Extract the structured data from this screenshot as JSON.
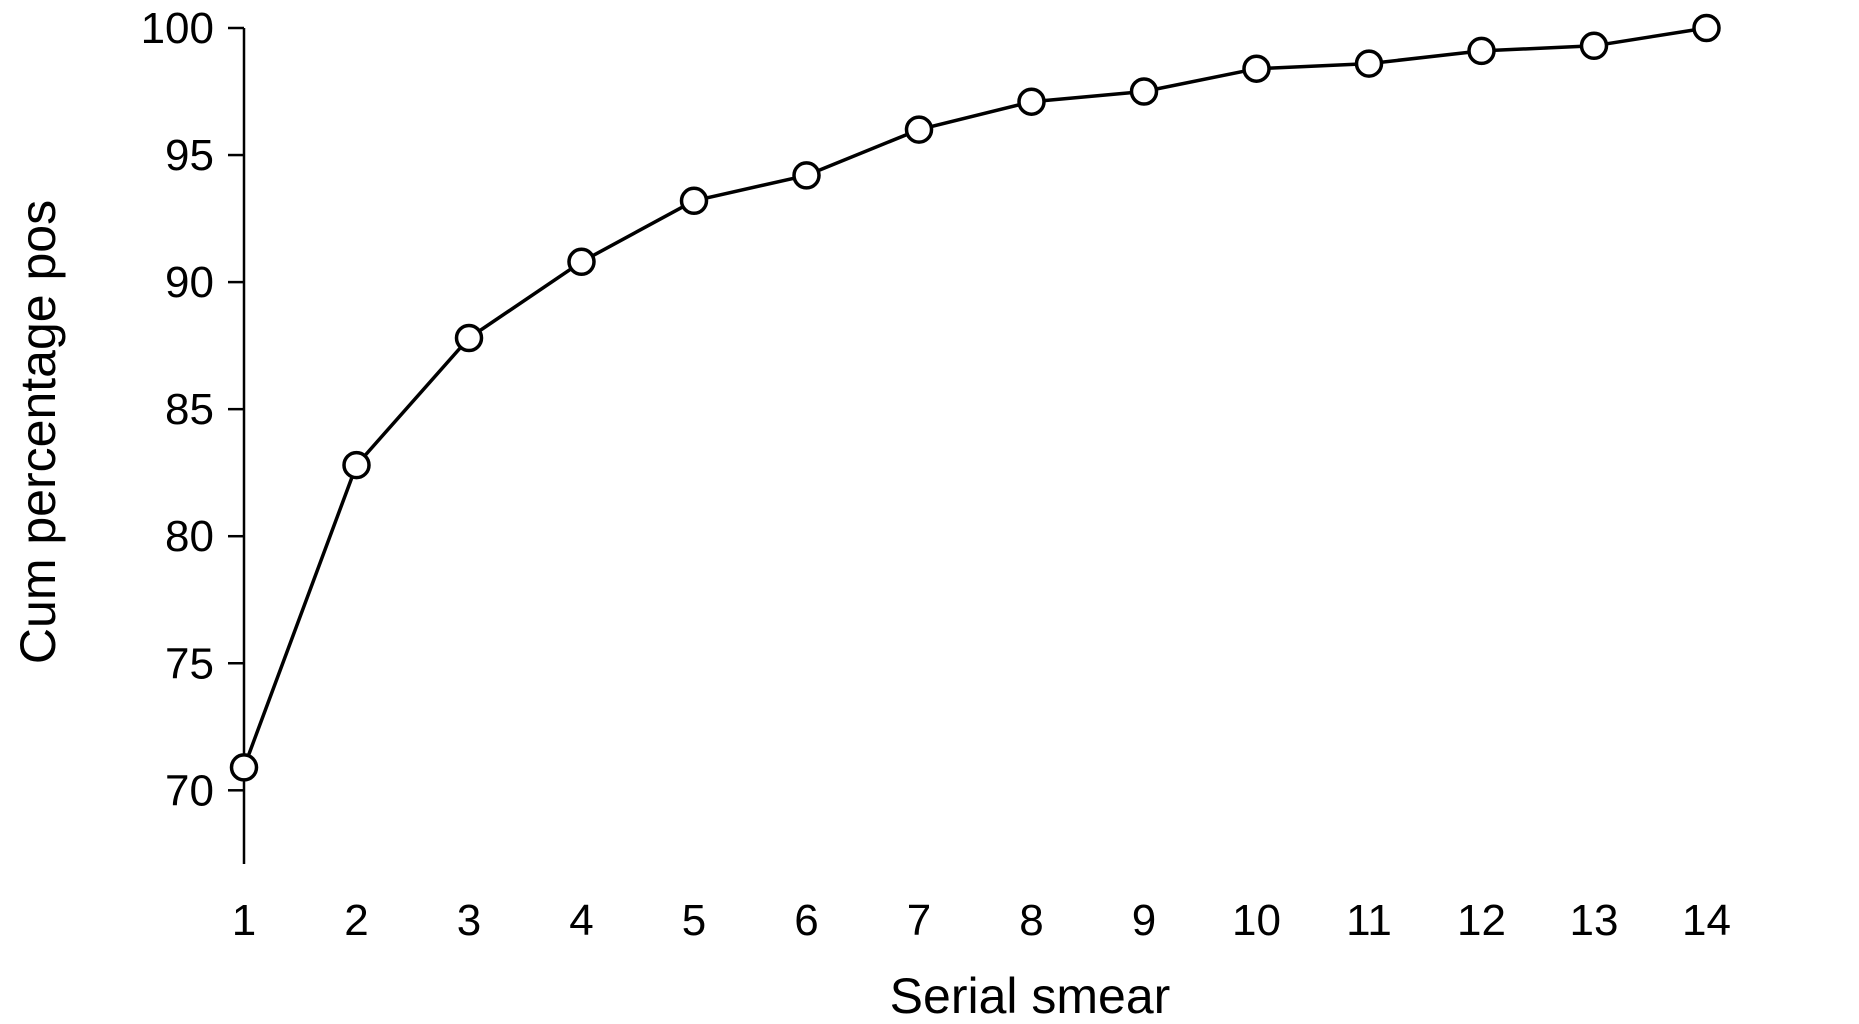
{
  "chart_data": {
    "type": "line",
    "title": "",
    "xlabel": "Serial smear",
    "ylabel": "Cum percentage pos",
    "x": [
      1,
      2,
      3,
      4,
      5,
      6,
      7,
      8,
      9,
      10,
      11,
      12,
      13,
      14
    ],
    "series": [
      {
        "values": [
          70.9,
          82.8,
          87.8,
          90.8,
          93.2,
          94.2,
          96.0,
          97.1,
          97.5,
          98.4,
          98.6,
          99.1,
          99.3,
          100.0
        ],
        "marker": "open-circle",
        "color": "#000000"
      }
    ],
    "xlim": [
      0,
      14.3
    ],
    "ylim": [
      67.1,
      100
    ],
    "yticks": [
      70,
      75,
      80,
      85,
      90,
      95,
      100
    ],
    "xticks": [
      1,
      2,
      3,
      4,
      5,
      6,
      7,
      8,
      9,
      10,
      11,
      12,
      13,
      14
    ],
    "grid": false,
    "legend": "none"
  }
}
